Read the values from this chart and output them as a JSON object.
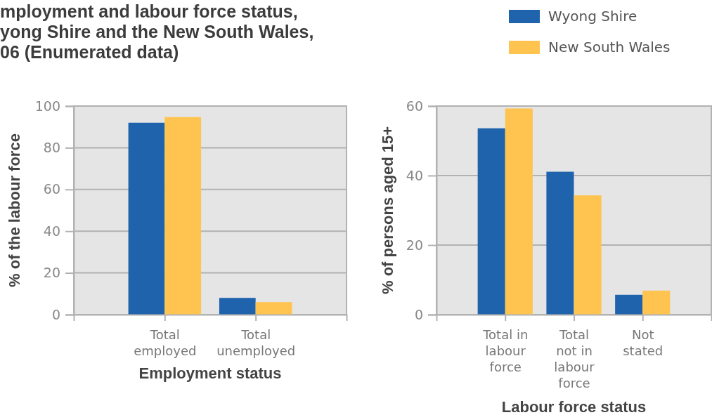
{
  "chart_data": [
    {
      "type": "bar",
      "title": "mployment and labour force status,\nyong Shire and the New South Wales,\n06 (Enumerated data)",
      "xlabel": "Employment status",
      "ylabel": "% of the labour force",
      "categories": [
        "Total employed",
        "Total unemployed"
      ],
      "series": [
        {
          "color": "#1f63ad",
          "values": [
            92,
            8
          ]
        },
        {
          "color": "#fec44f",
          "values": [
            94.7,
            6
          ]
        }
      ],
      "ylim": [
        0,
        100
      ],
      "yticks": [
        0,
        20,
        40,
        60,
        80,
        100
      ],
      "grid": "y"
    },
    {
      "type": "bar",
      "xlabel": "Labour force status",
      "ylabel": "% of persons aged 15+",
      "categories": [
        "Total in labour force",
        "Total not in labour force",
        "Not stated"
      ],
      "series": [
        {
          "name": "Wyong Shire",
          "color": "#1f63ad",
          "values": [
            53.6,
            41.1,
            5.7
          ]
        },
        {
          "name": "New South Wales",
          "color": "#fec44f",
          "values": [
            59.3,
            34.3,
            6.9
          ]
        }
      ],
      "ylim": [
        0,
        60
      ],
      "yticks": [
        0,
        20,
        40,
        60
      ],
      "grid": "y",
      "legend": "top right"
    }
  ]
}
